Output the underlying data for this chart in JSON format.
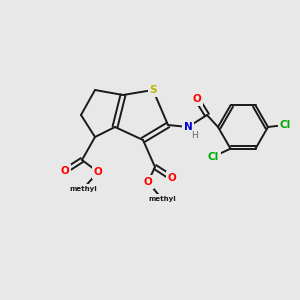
{
  "background_color": "#e8e8e8",
  "bond_color": "#1a1a1a",
  "atom_colors": {
    "S": "#b8b800",
    "O": "#ff0000",
    "N": "#0000cc",
    "Cl": "#00aa00",
    "C": "#1a1a1a",
    "H": "#666666"
  },
  "figsize": [
    3.0,
    3.0
  ],
  "dpi": 100,
  "lw": 1.4,
  "fs": 7.5
}
